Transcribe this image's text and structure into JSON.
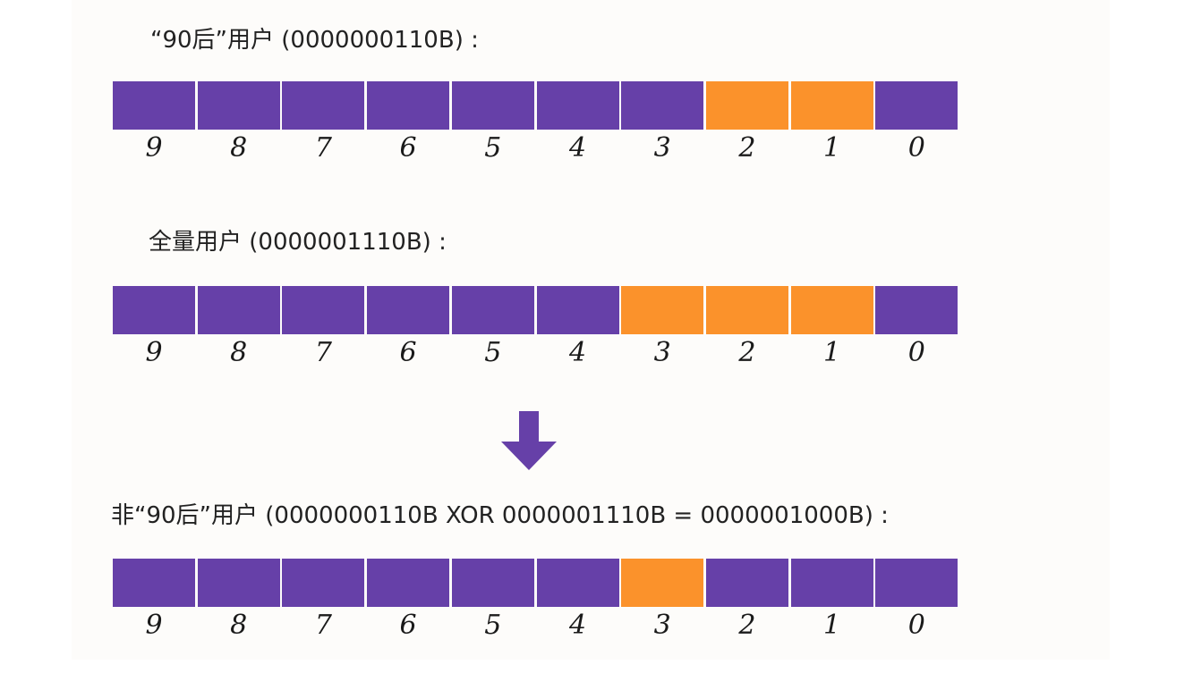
{
  "colors": {
    "off": "#6640a8",
    "on": "#fb922b"
  },
  "icons": {
    "arrow": "down-arrow-icon"
  },
  "rows": [
    {
      "label": "“90后”用户 (0000000110B) :",
      "bits": [
        {
          "index": "9",
          "value": 0
        },
        {
          "index": "8",
          "value": 0
        },
        {
          "index": "7",
          "value": 0
        },
        {
          "index": "6",
          "value": 0
        },
        {
          "index": "5",
          "value": 0
        },
        {
          "index": "4",
          "value": 0
        },
        {
          "index": "3",
          "value": 0
        },
        {
          "index": "2",
          "value": 1
        },
        {
          "index": "1",
          "value": 1
        },
        {
          "index": "0",
          "value": 0
        }
      ]
    },
    {
      "label": "全量用户 (0000001110B) :",
      "bits": [
        {
          "index": "9",
          "value": 0
        },
        {
          "index": "8",
          "value": 0
        },
        {
          "index": "7",
          "value": 0
        },
        {
          "index": "6",
          "value": 0
        },
        {
          "index": "5",
          "value": 0
        },
        {
          "index": "4",
          "value": 0
        },
        {
          "index": "3",
          "value": 1
        },
        {
          "index": "2",
          "value": 1
        },
        {
          "index": "1",
          "value": 1
        },
        {
          "index": "0",
          "value": 0
        }
      ]
    },
    {
      "label": "非“90后”用户 (0000000110B XOR 0000001110B = 0000001000B) :",
      "bits": [
        {
          "index": "9",
          "value": 0
        },
        {
          "index": "8",
          "value": 0
        },
        {
          "index": "7",
          "value": 0
        },
        {
          "index": "6",
          "value": 0
        },
        {
          "index": "5",
          "value": 0
        },
        {
          "index": "4",
          "value": 0
        },
        {
          "index": "3",
          "value": 1
        },
        {
          "index": "2",
          "value": 0
        },
        {
          "index": "1",
          "value": 0
        },
        {
          "index": "0",
          "value": 0
        }
      ]
    }
  ]
}
